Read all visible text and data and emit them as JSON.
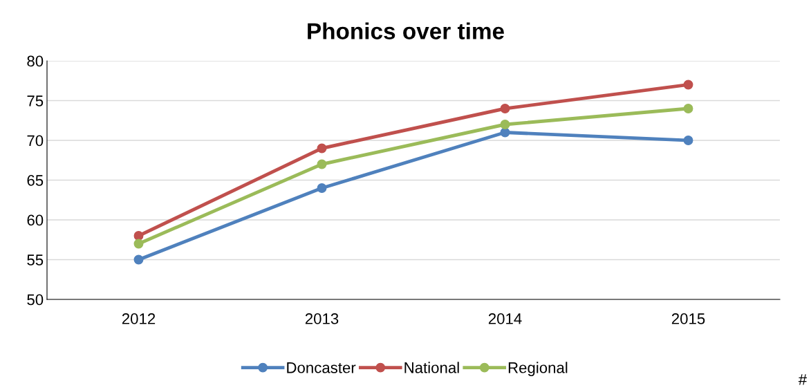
{
  "chart_data": {
    "type": "line",
    "title": "Phonics over time",
    "categories": [
      "2012",
      "2013",
      "2014",
      "2015"
    ],
    "series": [
      {
        "name": "Doncaster",
        "color": "#4f81bd",
        "values": [
          55,
          64,
          71,
          70
        ]
      },
      {
        "name": "National",
        "color": "#c0504d",
        "values": [
          58,
          69,
          74,
          77
        ]
      },
      {
        "name": "Regional",
        "color": "#9bbb59",
        "values": [
          57,
          67,
          72,
          74
        ]
      }
    ],
    "ylim": [
      50,
      80
    ],
    "yticks": [
      50,
      55,
      60,
      65,
      70,
      75,
      80
    ],
    "grid": "y",
    "legend": "bottom",
    "marker": "circle",
    "line_style": "solid",
    "annotations": [
      "#"
    ]
  }
}
